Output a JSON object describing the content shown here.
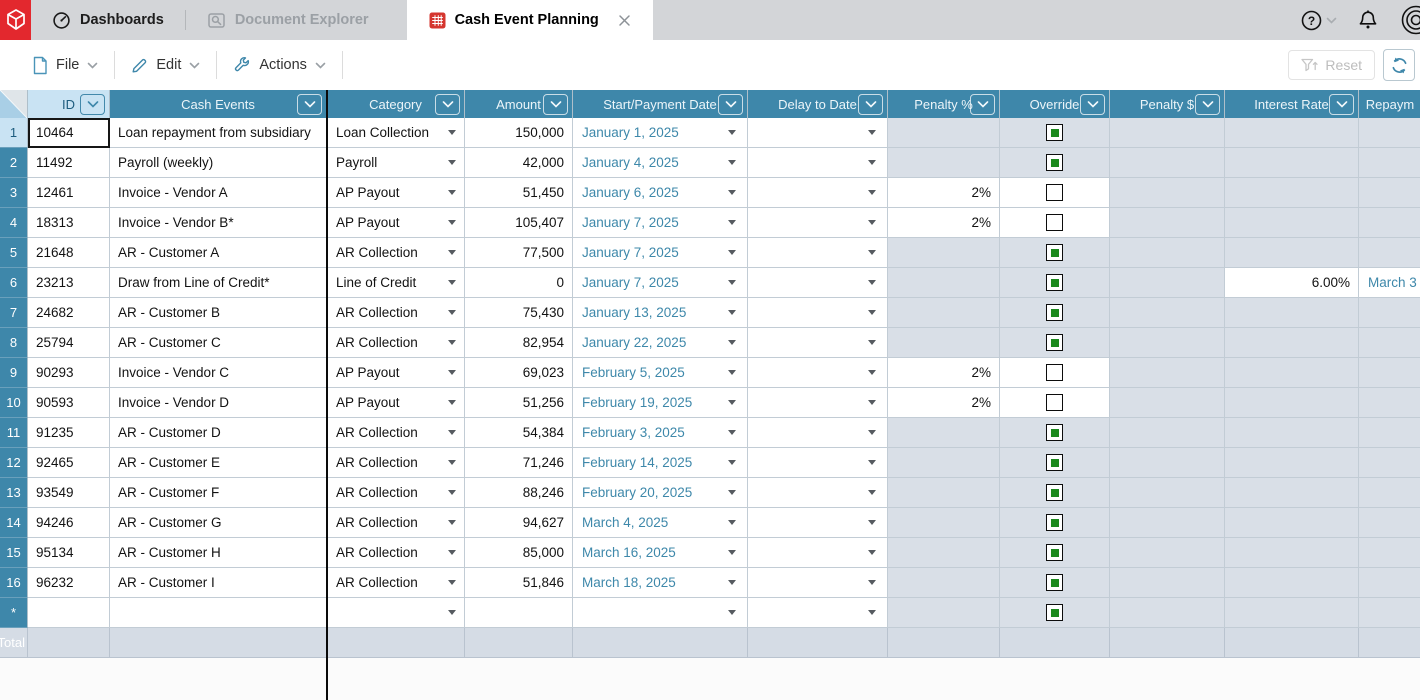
{
  "tab_bar": {
    "tabs": [
      {
        "label": "Dashboards",
        "icon": "gauge-icon",
        "state": "default"
      },
      {
        "label": "Document Explorer",
        "icon": "folder-search-icon",
        "state": "disabled"
      },
      {
        "label": "Cash Event Planning",
        "icon": "spreadsheet-icon",
        "state": "active",
        "closable": true
      }
    ],
    "right_icons": [
      "help-icon",
      "chevron-down-icon",
      "bell-icon",
      "concentric-circles-icon"
    ]
  },
  "toolbar": {
    "menus": [
      {
        "label": "File",
        "icon": "file-icon"
      },
      {
        "label": "Edit",
        "icon": "pencil-icon"
      },
      {
        "label": "Actions",
        "icon": "wrench-icon"
      }
    ],
    "reset_label": "Reset",
    "reset_icon": "filter-reset-icon",
    "refresh_icon": "refresh-icon"
  },
  "grid": {
    "columns": [
      {
        "key": "id",
        "label": "ID",
        "selected": true,
        "menu_button": true
      },
      {
        "key": "event",
        "label": "Cash Events",
        "selected": false,
        "menu_button": true
      },
      {
        "key": "cat",
        "label": "Category",
        "selected": false,
        "menu_button": true
      },
      {
        "key": "amount",
        "label": "Amount",
        "selected": false,
        "menu_button": true
      },
      {
        "key": "date",
        "label": "Start/Payment Date",
        "selected": false,
        "menu_button": true
      },
      {
        "key": "delay",
        "label": "Delay to Date",
        "selected": false,
        "menu_button": true
      },
      {
        "key": "pct",
        "label": "Penalty %",
        "selected": false,
        "menu_button": true
      },
      {
        "key": "ovr",
        "label": "Override",
        "selected": false,
        "menu_button": true
      },
      {
        "key": "pdol",
        "label": "Penalty $",
        "selected": false,
        "menu_button": true
      },
      {
        "key": "ir",
        "label": "Interest Rate",
        "selected": false,
        "menu_button": true
      },
      {
        "key": "rep",
        "label": "Repaym",
        "selected": false,
        "menu_button": false
      }
    ],
    "rows": [
      {
        "num": "1",
        "id": "10464",
        "event": "Loan repayment from subsidiary",
        "category": "Loan Collection",
        "amount": "150,000",
        "date": "January 1, 2025",
        "penalty": "",
        "override": "checked",
        "interest": "",
        "repay": "",
        "selected": true
      },
      {
        "num": "2",
        "id": "11492",
        "event": "Payroll (weekly)",
        "category": "Payroll",
        "amount": "42,000",
        "date": "January 4, 2025",
        "penalty": "",
        "override": "checked",
        "interest": "",
        "repay": ""
      },
      {
        "num": "3",
        "id": "12461",
        "event": "Invoice - Vendor A",
        "category": "AP Payout",
        "amount": "51,450",
        "date": "January 6, 2025",
        "penalty": "2%",
        "override": "unchecked",
        "interest": "",
        "repay": ""
      },
      {
        "num": "4",
        "id": "18313",
        "event": "Invoice - Vendor B*",
        "category": "AP Payout",
        "amount": "105,407",
        "date": "January 7, 2025",
        "penalty": "2%",
        "override": "unchecked",
        "interest": "",
        "repay": ""
      },
      {
        "num": "5",
        "id": "21648",
        "event": "AR - Customer A",
        "category": "AR Collection",
        "amount": "77,500",
        "date": "January 7, 2025",
        "penalty": "",
        "override": "checked",
        "interest": "",
        "repay": ""
      },
      {
        "num": "6",
        "id": "23213",
        "event": "Draw from Line of Credit*",
        "category": "Line of Credit",
        "amount": "0",
        "date": "January 7, 2025",
        "penalty": "",
        "override": "checked",
        "interest": "6.00%",
        "repay": "March 3"
      },
      {
        "num": "7",
        "id": "24682",
        "event": "AR - Customer B",
        "category": "AR Collection",
        "amount": "75,430",
        "date": "January 13, 2025",
        "penalty": "",
        "override": "checked",
        "interest": "",
        "repay": ""
      },
      {
        "num": "8",
        "id": "25794",
        "event": "AR - Customer C",
        "category": "AR Collection",
        "amount": "82,954",
        "date": "January 22, 2025",
        "penalty": "",
        "override": "checked",
        "interest": "",
        "repay": ""
      },
      {
        "num": "9",
        "id": "90293",
        "event": "Invoice - Vendor C",
        "category": "AP Payout",
        "amount": "69,023",
        "date": "February 5, 2025",
        "penalty": "2%",
        "override": "unchecked",
        "interest": "",
        "repay": ""
      },
      {
        "num": "10",
        "id": "90593",
        "event": "Invoice - Vendor D",
        "category": "AP Payout",
        "amount": "51,256",
        "date": "February 19, 2025",
        "penalty": "2%",
        "override": "unchecked",
        "interest": "",
        "repay": ""
      },
      {
        "num": "11",
        "id": "91235",
        "event": "AR - Customer D",
        "category": "AR Collection",
        "amount": "54,384",
        "date": "February 3, 2025",
        "penalty": "",
        "override": "checked",
        "interest": "",
        "repay": ""
      },
      {
        "num": "12",
        "id": "92465",
        "event": "AR - Customer E",
        "category": "AR Collection",
        "amount": "71,246",
        "date": "February 14, 2025",
        "penalty": "",
        "override": "checked",
        "interest": "",
        "repay": ""
      },
      {
        "num": "13",
        "id": "93549",
        "event": "AR - Customer F",
        "category": "AR Collection",
        "amount": "88,246",
        "date": "February 20, 2025",
        "penalty": "",
        "override": "checked",
        "interest": "",
        "repay": ""
      },
      {
        "num": "14",
        "id": "94246",
        "event": "AR - Customer G",
        "category": "AR Collection",
        "amount": "94,627",
        "date": "March 4, 2025",
        "penalty": "",
        "override": "checked",
        "interest": "",
        "repay": ""
      },
      {
        "num": "15",
        "id": "95134",
        "event": "AR - Customer H",
        "category": "AR Collection",
        "amount": "85,000",
        "date": "March 16, 2025",
        "penalty": "",
        "override": "checked",
        "interest": "",
        "repay": ""
      },
      {
        "num": "16",
        "id": "96232",
        "event": "AR - Customer I",
        "category": "AR Collection",
        "amount": "51,846",
        "date": "March 18, 2025",
        "penalty": "",
        "override": "checked",
        "interest": "",
        "repay": ""
      },
      {
        "num": "*",
        "id": "",
        "event": "",
        "category": "",
        "amount": "",
        "date": "",
        "penalty": "",
        "override": "checked",
        "interest": "",
        "repay": "",
        "type": "new"
      },
      {
        "num": "Total",
        "id": "",
        "event": "",
        "category": "",
        "amount": "",
        "date": "",
        "penalty": "",
        "override": "",
        "interest": "",
        "repay": "",
        "type": "total"
      }
    ]
  },
  "colors": {
    "header_teal": "#3e87aa",
    "selected_header_blue": "#c9e3f3",
    "disabled_cell": "#d9dfe7",
    "total_row": "#d5dce5",
    "brand_red": "#e3282e",
    "link_teal": "#3e88aa",
    "checkbox_green": "#1b8a1d"
  }
}
